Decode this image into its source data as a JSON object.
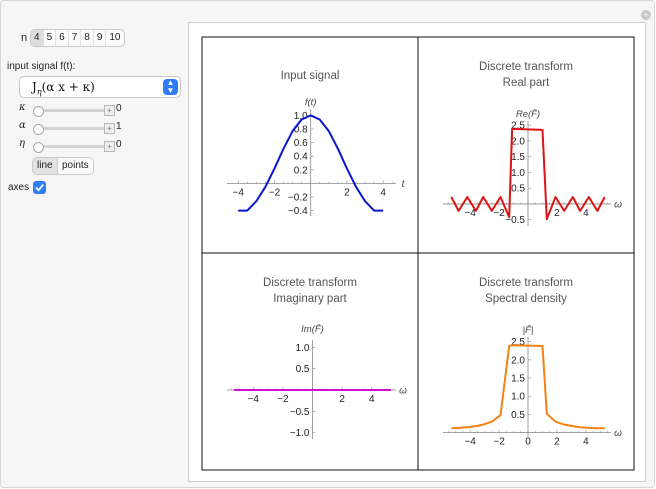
{
  "controls": {
    "n_label": "n",
    "n_options": [
      "4",
      "5",
      "6",
      "7",
      "8",
      "9",
      "10"
    ],
    "n_selected": "4",
    "input_label": "input signal f(t):",
    "signal_selected": "J",
    "signal_sub": "η",
    "signal_args": "(α x + κ)",
    "sliders": [
      {
        "symbol": "κ",
        "value": "0",
        "fraction": 0.0
      },
      {
        "symbol": "α",
        "value": "1",
        "fraction": 0.0
      },
      {
        "symbol": "η",
        "value": "0",
        "fraction": 0.0
      }
    ],
    "plot_style": {
      "line": "line",
      "points": "points",
      "selected": "line"
    },
    "axes_label": "axes",
    "axes_checked": true
  },
  "colors": {
    "accent": "#2f7cf6",
    "input": "#0a14d2",
    "real": "#dc1414",
    "imag": "#d10fd1",
    "spectral": "#f58214"
  },
  "chart_data": [
    {
      "type": "line",
      "title": "Input signal",
      "ylabel": "f(t)",
      "xlabel": "t",
      "color": "#0a14d2",
      "xlim": [
        -4.4,
        4.6
      ],
      "ylim": [
        -0.48,
        1.08
      ],
      "xticks": [
        -4,
        -2,
        2,
        4
      ],
      "yticks": [
        -0.4,
        -0.2,
        0.2,
        0.4,
        0.6,
        0.8,
        1.0
      ],
      "ytick_labels": [
        "−0.4",
        "−0.2",
        "0.2",
        "0.4",
        "0.6",
        "0.8",
        "1.0"
      ],
      "x": [
        -4,
        -3.5,
        -3,
        -2.5,
        -2,
        -1.5,
        -1,
        -0.5,
        0,
        0.5,
        1,
        1.5,
        2,
        2.5,
        3,
        3.5,
        4
      ],
      "y": [
        -0.4,
        -0.4,
        -0.26,
        -0.05,
        0.22,
        0.51,
        0.77,
        0.94,
        1.0,
        0.94,
        0.77,
        0.51,
        0.22,
        -0.05,
        -0.26,
        -0.4,
        -0.4
      ]
    },
    {
      "type": "line",
      "title": "Discrete transform",
      "subtitle": "Real part",
      "ylabel": "Re(F̄)",
      "xlabel": "ω",
      "color": "#dc1414",
      "xlim": [
        -5.6,
        5.6
      ],
      "ylim": [
        -0.7,
        2.6
      ],
      "xticks": [
        -4,
        -2,
        2,
        4
      ],
      "yticks": [
        -0.5,
        0.5,
        1.0,
        1.5,
        2.0,
        2.5
      ],
      "ytick_labels": [
        "−0.5",
        "0.5",
        "1.0",
        "1.5",
        "2.0",
        "2.5"
      ],
      "x": [
        -5.3,
        -4.8,
        -4.2,
        -3.6,
        -3.1,
        -2.5,
        -1.9,
        -1.3,
        -1.1,
        1.0,
        1.3,
        1.9,
        2.5,
        3.1,
        3.6,
        4.2,
        4.8,
        5.3
      ],
      "y": [
        0.22,
        -0.22,
        0.22,
        -0.22,
        0.22,
        -0.22,
        0.22,
        -0.42,
        2.38,
        2.35,
        -0.48,
        0.22,
        -0.22,
        0.22,
        -0.22,
        0.22,
        -0.22,
        0.22
      ]
    },
    {
      "type": "line",
      "title": "Discrete transform",
      "subtitle": "Imaginary part",
      "ylabel": "Im(F̄)",
      "xlabel": "ω",
      "color": "#d10fd1",
      "xlim": [
        -5.5,
        5.5
      ],
      "ylim": [
        -1.15,
        1.15
      ],
      "xticks": [
        -4,
        -2,
        2,
        4
      ],
      "yticks": [
        -1.0,
        -0.5,
        0.5,
        1.0
      ],
      "ytick_labels": [
        "−1.0",
        "−0.5",
        "0.5",
        "1.0"
      ],
      "x": [
        -5.3,
        5.3
      ],
      "y": [
        0,
        0
      ]
    },
    {
      "type": "line",
      "title": "Discrete transform",
      "subtitle": "Spectral density",
      "ylabel": "|F̄|",
      "xlabel": "ω",
      "color": "#f58214",
      "xlim": [
        -5.6,
        5.6
      ],
      "ylim": [
        -0.12,
        2.6
      ],
      "xticks": [
        -4,
        -2,
        0,
        2,
        4
      ],
      "yticks": [
        0.5,
        1.0,
        1.5,
        2.0,
        2.5
      ],
      "ytick_labels": [
        "0.5",
        "1.0",
        "1.5",
        "2.0",
        "2.5"
      ],
      "x": [
        -5.3,
        -4.8,
        -4.2,
        -3.6,
        -3.1,
        -2.5,
        -1.9,
        -1.3,
        -1.1,
        1.0,
        1.3,
        1.9,
        2.5,
        3.1,
        3.6,
        4.2,
        4.8,
        5.3
      ],
      "y": [
        0.12,
        0.13,
        0.15,
        0.18,
        0.22,
        0.3,
        0.48,
        2.38,
        2.4,
        2.38,
        0.52,
        0.3,
        0.22,
        0.18,
        0.15,
        0.13,
        0.12,
        0.12
      ]
    }
  ]
}
